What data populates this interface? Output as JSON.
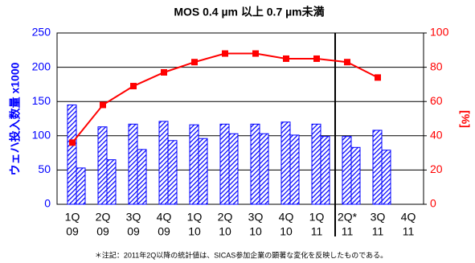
{
  "chart_data": {
    "type": "bar_line",
    "title": "MOS 0.4 µm 以上  0.7 µm未満",
    "y_label": "ウェハ投入数量 x1000",
    "y2_label": "[%]",
    "note": "＊注記：2011年2Q以降の統計値は、SICAS参加企業の顕著な変化を反映したものである。",
    "categories": [
      [
        "1Q",
        "09"
      ],
      [
        "2Q",
        "09"
      ],
      [
        "3Q",
        "09"
      ],
      [
        "4Q",
        "09"
      ],
      [
        "1Q",
        "10"
      ],
      [
        "2Q",
        "10"
      ],
      [
        "3Q",
        "10"
      ],
      [
        "4Q",
        "10"
      ],
      [
        "1Q",
        "11"
      ],
      [
        "2Q*",
        "11"
      ],
      [
        "3Q",
        "11"
      ],
      [
        "4Q",
        "11"
      ]
    ],
    "series": [
      {
        "type": "bar",
        "color": "#0000ff",
        "values": [
          145,
          113,
          117,
          121,
          116,
          117,
          117,
          120,
          117,
          99,
          108,
          null
        ]
      },
      {
        "type": "bar",
        "color": "#0000ff",
        "values": [
          53,
          65,
          80,
          93,
          96,
          103,
          103,
          101,
          99,
          83,
          79,
          null
        ]
      },
      {
        "type": "line",
        "axis": "y2",
        "color": "#ff0000",
        "values": [
          36,
          58,
          69,
          77,
          83,
          88,
          88,
          85,
          85,
          83,
          74,
          null
        ]
      }
    ],
    "ylim": [
      0,
      250
    ],
    "yticks": [
      0,
      50,
      100,
      150,
      200,
      250
    ],
    "y_color": "#0000ff",
    "y2lim": [
      0,
      100
    ],
    "y2ticks": [
      0,
      20,
      40,
      60,
      80,
      100
    ],
    "y2_color": "#ff0000",
    "grid": true
  }
}
